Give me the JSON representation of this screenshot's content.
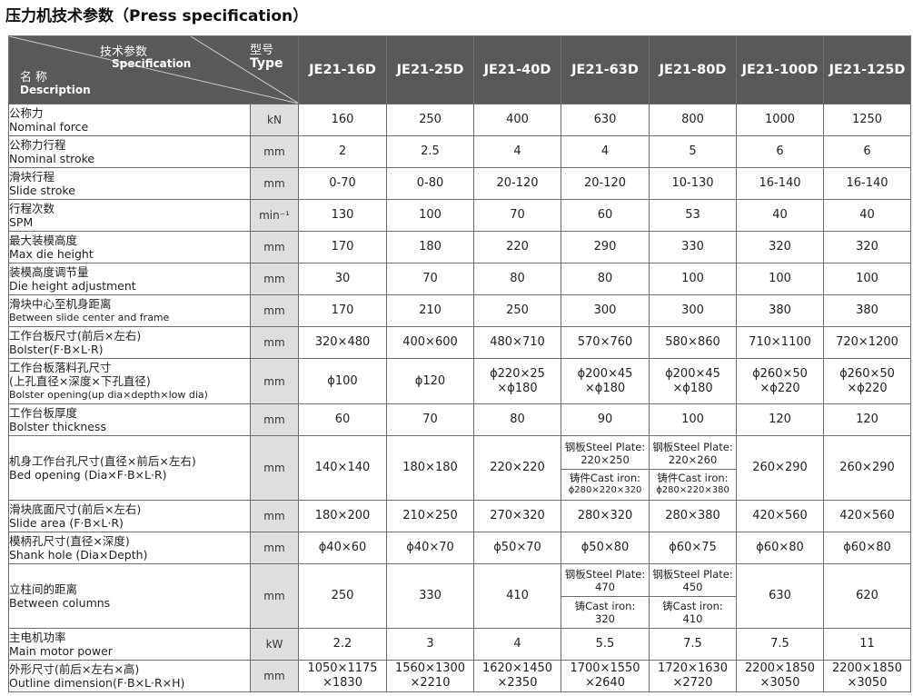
{
  "title": "压力机技术参数（Press specification）",
  "header": {
    "spec_cn": "技术参数",
    "spec_en": "Specification",
    "type_cn": "型号",
    "type_en": "Type",
    "desc_cn": "名称",
    "desc_en": "Description",
    "models": [
      "JE21-16D",
      "JE21-25D",
      "JE21-40D",
      "JE21-63D",
      "JE21-80D",
      "JE21-100D",
      "JE21-125D"
    ]
  },
  "rows": [
    {
      "cn": "公称力",
      "en": "Nominal force",
      "unit": "kN",
      "values": [
        "160",
        "250",
        "400",
        "630",
        "800",
        "1000",
        "1250"
      ]
    },
    {
      "cn": "公称力行程",
      "en": "Nominal stroke",
      "unit": "mm",
      "values": [
        "2",
        "2.5",
        "4",
        "4",
        "5",
        "6",
        "6"
      ]
    },
    {
      "cn": "滑块行程",
      "en": "Slide stroke",
      "unit": "mm",
      "values": [
        "0-70",
        "0-80",
        "20-120",
        "20-120",
        "10-130",
        "16-140",
        "16-140"
      ]
    },
    {
      "cn": "行程次数",
      "en": "SPM",
      "unit": "min⁻¹",
      "values": [
        "130",
        "100",
        "70",
        "60",
        "53",
        "40",
        "40"
      ]
    },
    {
      "cn": "最大装模高度",
      "en": "Max die height",
      "unit": "mm",
      "values": [
        "170",
        "180",
        "220",
        "290",
        "330",
        "320",
        "320"
      ]
    },
    {
      "cn": "装模高度调节量",
      "en": "Die height adjustment",
      "unit": "mm",
      "values": [
        "30",
        "70",
        "80",
        "80",
        "100",
        "100",
        "100"
      ]
    },
    {
      "cn": "滑块中心至机身距离",
      "en": "Between slide center and frame",
      "unit": "mm",
      "values": [
        "170",
        "210",
        "250",
        "300",
        "300",
        "380",
        "380"
      ]
    },
    {
      "cn": "工作台板尺寸(前后×左右)",
      "en": "Bolster(F·B×L·R)",
      "unit": "mm",
      "values": [
        "320×480",
        "400×600",
        "480×710",
        "570×760",
        "580×860",
        "710×1100",
        "720×1200"
      ]
    },
    {
      "cn": "工作台板落料孔尺寸",
      "cn2": "(上孔直径×深度×下孔直径)",
      "en": "Bolster opening(up dia×depth×low dia)",
      "unit": "mm",
      "values": [
        "ϕ100",
        "ϕ120",
        "ϕ220×25",
        "ϕ200×45",
        "ϕ200×45",
        "ϕ260×50",
        "ϕ260×50"
      ],
      "values2": [
        "",
        "",
        "×ϕ180",
        "×ϕ180",
        "×ϕ180",
        "×ϕ220",
        "×ϕ220"
      ]
    },
    {
      "cn": "工作台板厚度",
      "en": "Bolster thickness",
      "unit": "mm",
      "values": [
        "60",
        "70",
        "80",
        "90",
        "100",
        "120",
        "120"
      ]
    },
    {
      "cn": "机身工作台孔尺寸(直径×前后×左右)",
      "en": "Bed opening (Dia×F·B×L·R)",
      "unit": "mm",
      "values": [
        "140×140",
        "180×180",
        "220×220",
        "",
        "",
        "260×290",
        "260×290"
      ],
      "split": {
        "c63": {
          "top1": "钢板Steel Plate:",
          "top2": "220×250",
          "bot1": "铸件Cast iron:",
          "bot2": "ϕ280×220×320"
        },
        "c80": {
          "top1": "钢板Steel Plate:",
          "top2": "220×260",
          "bot1": "铸件Cast iron:",
          "bot2": "ϕ280×220×380"
        }
      }
    },
    {
      "cn": "滑块底面尺寸(前后×左右)",
      "en": "Slide area (F·B×L·R)",
      "unit": "mm",
      "values": [
        "180×200",
        "210×250",
        "270×320",
        "280×320",
        "280×380",
        "420×560",
        "420×560"
      ]
    },
    {
      "cn": "模柄孔尺寸(直径×深度)",
      "en": "Shank hole (Dia×Depth)",
      "unit": "mm",
      "values": [
        "ϕ40×60",
        "ϕ40×70",
        "ϕ50×70",
        "ϕ50×80",
        "ϕ60×75",
        "ϕ60×80",
        "ϕ60×80"
      ]
    },
    {
      "cn": "立柱间的距离",
      "en": "Between columns",
      "unit": "mm",
      "values": [
        "250",
        "330",
        "410",
        "",
        "",
        "630",
        "620"
      ],
      "split": {
        "c63": {
          "top1": "钢板Steel Plate:",
          "top2": "470",
          "bot1": "铸Cast iron:",
          "bot2": "320"
        },
        "c80": {
          "top1": "钢板Steel Plate:",
          "top2": "450",
          "bot1": "铸Cast iron:",
          "bot2": "410"
        }
      }
    },
    {
      "cn": "主电机功率",
      "en": "Main motor power",
      "unit": "kW",
      "values": [
        "2.2",
        "3",
        "4",
        "5.5",
        "7.5",
        "7.5",
        "11"
      ]
    },
    {
      "cn": "外形尺寸(前后×左右×高)",
      "en": "Outline dimension(F·B×L·R×H)",
      "unit": "mm",
      "values": [
        "1050×1175",
        "1560×1300",
        "1620×1450",
        "1700×1550",
        "1720×1630",
        "2200×1850",
        "2200×1850"
      ],
      "values2": [
        "×1830",
        "×2210",
        "×2350",
        "×2640",
        "×2720",
        "×3050",
        "×3050"
      ]
    }
  ]
}
